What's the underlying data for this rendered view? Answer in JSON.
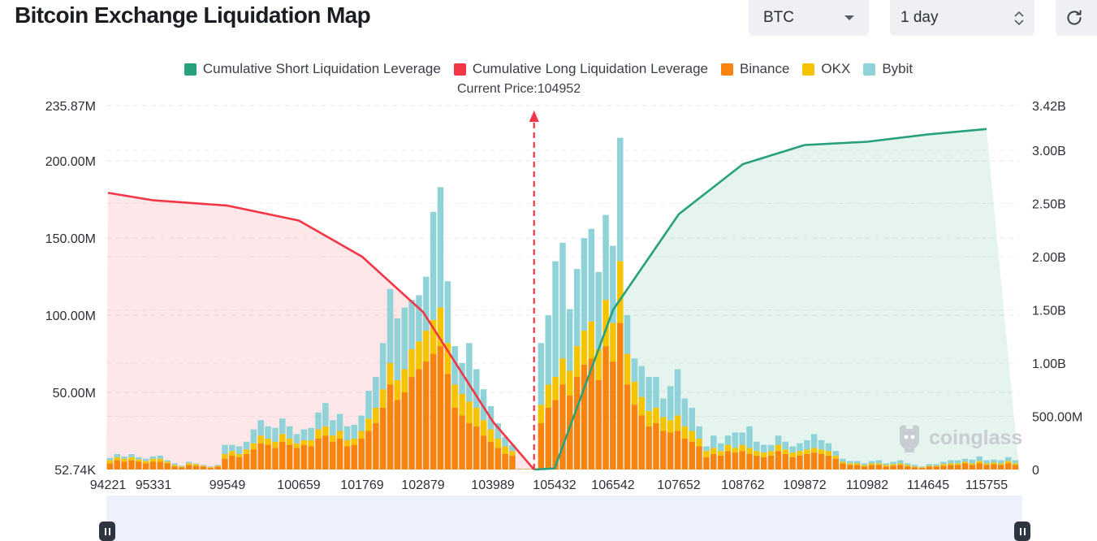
{
  "page": {
    "title": "Bitcoin Exchange Liquidation Map"
  },
  "controls": {
    "symbol": {
      "value": "BTC",
      "icon": "chevron-down-icon"
    },
    "period": {
      "value": "1 day",
      "icon": "updown-arrows-icon"
    },
    "refresh": {
      "icon": "refresh-icon"
    }
  },
  "watermark": {
    "text": "coinglass",
    "icon": "coinglass-logo-icon"
  },
  "colors": {
    "short": "#26a17b",
    "long": "#f23645",
    "binance": "#f7840f",
    "okx": "#f5c400",
    "bybit": "#8fd3d8"
  },
  "chart_data": {
    "type": "bar",
    "current_price_label": "Current Price:104952",
    "current_price": 104952,
    "legend": [
      {
        "label": "Cumulative Short Liquidation Leverage",
        "color": "#26a17b"
      },
      {
        "label": "Cumulative Long Liquidation Leverage",
        "color": "#f23645"
      },
      {
        "label": "Binance",
        "color": "#f7840f"
      },
      {
        "label": "OKX",
        "color": "#f5c400"
      },
      {
        "label": "Bybit",
        "color": "#8fd3d8"
      }
    ],
    "legend_position": "top-center",
    "x_tick_labels": [
      "94221",
      "95331",
      "99549",
      "100659",
      "101769",
      "102879",
      "103989",
      "105432",
      "106542",
      "107652",
      "108762",
      "109872",
      "110982",
      "114645",
      "115755"
    ],
    "left_axis": {
      "ticks": [
        "52.74K",
        "50.00M",
        "100.00M",
        "150.00M",
        "200.00M",
        "235.87M"
      ],
      "range": [
        0,
        235870000
      ]
    },
    "right_axis": {
      "ticks": [
        "0",
        "500.00M",
        "1.00B",
        "1.50B",
        "2.00B",
        "2.50B",
        "3.00B",
        "3.42B"
      ],
      "range": [
        0,
        3420000000
      ]
    },
    "bars_M": [
      [
        4,
        2,
        1.5
      ],
      [
        6,
        2,
        2
      ],
      [
        5,
        2,
        1.5
      ],
      [
        6,
        2,
        2
      ],
      [
        5,
        1.5,
        1.5
      ],
      [
        4,
        1.5,
        1.5
      ],
      [
        5,
        2,
        1.5
      ],
      [
        5,
        2,
        2
      ],
      [
        4,
        1,
        1
      ],
      [
        2,
        1,
        1
      ],
      [
        1.5,
        0.5,
        0.5
      ],
      [
        3,
        1,
        1
      ],
      [
        2.5,
        1,
        0.5
      ],
      [
        2,
        0.5,
        0.5
      ],
      [
        1,
        0.5,
        0.5
      ],
      [
        2,
        0.5,
        0.5
      ],
      [
        7,
        3,
        6
      ],
      [
        9,
        3,
        4
      ],
      [
        8,
        2,
        5
      ],
      [
        10,
        3,
        5
      ],
      [
        13,
        4,
        9
      ],
      [
        17,
        5,
        10
      ],
      [
        16,
        4,
        8
      ],
      [
        14,
        4,
        9
      ],
      [
        18,
        5,
        10
      ],
      [
        16,
        4,
        8
      ],
      [
        14,
        3,
        6
      ],
      [
        16,
        3,
        7
      ],
      [
        15,
        4,
        8
      ],
      [
        20,
        6,
        11
      ],
      [
        22,
        6,
        15
      ],
      [
        18,
        4,
        10
      ],
      [
        20,
        5,
        11
      ],
      [
        15,
        4,
        9
      ],
      [
        16,
        4,
        9
      ],
      [
        20,
        5,
        10
      ],
      [
        25,
        8,
        18
      ],
      [
        30,
        10,
        20
      ],
      [
        40,
        12,
        30
      ],
      [
        55,
        14,
        48
      ],
      [
        45,
        13,
        40
      ],
      [
        50,
        15,
        40
      ],
      [
        60,
        18,
        32
      ],
      [
        65,
        18,
        30
      ],
      [
        70,
        20,
        35
      ],
      [
        75,
        22,
        70
      ],
      [
        80,
        25,
        78
      ],
      [
        62,
        20,
        40
      ],
      [
        40,
        15,
        25
      ],
      [
        35,
        14,
        20
      ],
      [
        30,
        14,
        38
      ],
      [
        28,
        12,
        25
      ],
      [
        22,
        10,
        20
      ],
      [
        18,
        8,
        15
      ],
      [
        14,
        6,
        10
      ],
      [
        10,
        5,
        6
      ],
      [
        9,
        3,
        4
      ],
      [
        0.3,
        0.1,
        0.1
      ],
      [
        0.3,
        0.1,
        0.1
      ],
      [
        0.4,
        0.1,
        0.2
      ],
      [
        30,
        12,
        40
      ],
      [
        40,
        15,
        45
      ],
      [
        45,
        15,
        75
      ],
      [
        55,
        17,
        75
      ],
      [
        48,
        16,
        40
      ],
      [
        60,
        20,
        50
      ],
      [
        68,
        22,
        60
      ],
      [
        72,
        24,
        60
      ],
      [
        58,
        20,
        50
      ],
      [
        80,
        30,
        55
      ],
      [
        70,
        25,
        50
      ],
      [
        95,
        40,
        80
      ],
      [
        55,
        20,
        25
      ],
      [
        42,
        15,
        15
      ],
      [
        35,
        12,
        20
      ],
      [
        28,
        10,
        22
      ],
      [
        30,
        10,
        20
      ],
      [
        25,
        9,
        12
      ],
      [
        24,
        8,
        22
      ],
      [
        25,
        10,
        30
      ],
      [
        20,
        8,
        18
      ],
      [
        18,
        7,
        15
      ],
      [
        15,
        5,
        8
      ],
      [
        8,
        4,
        3
      ],
      [
        10,
        4,
        8
      ],
      [
        9,
        3,
        5
      ],
      [
        12,
        4,
        6
      ],
      [
        11,
        3,
        10
      ],
      [
        12,
        4,
        8
      ],
      [
        10,
        4,
        14
      ],
      [
        9,
        3,
        6
      ],
      [
        8,
        3,
        5
      ],
      [
        9,
        3,
        4
      ],
      [
        12,
        4,
        6
      ],
      [
        10,
        3,
        5
      ],
      [
        8,
        3,
        4
      ],
      [
        9,
        3,
        5
      ],
      [
        10,
        3,
        6
      ],
      [
        11,
        3,
        9
      ],
      [
        10,
        3,
        6
      ],
      [
        9,
        3,
        5
      ],
      [
        7,
        2,
        3
      ],
      [
        4,
        1,
        2
      ],
      [
        3,
        1,
        1.5
      ],
      [
        3,
        1,
        1.5
      ],
      [
        2,
        1,
        1
      ],
      [
        3,
        1,
        1.5
      ],
      [
        3,
        1,
        2
      ],
      [
        2,
        1,
        1
      ],
      [
        2.5,
        1,
        1.5
      ],
      [
        3,
        1,
        2
      ],
      [
        2,
        1,
        1
      ],
      [
        1.5,
        0.5,
        1
      ],
      [
        1,
        0.5,
        0.5
      ],
      [
        2,
        0.5,
        1
      ],
      [
        2,
        0.5,
        1
      ],
      [
        2.5,
        1,
        1.5
      ],
      [
        3,
        1,
        2
      ],
      [
        3,
        1,
        2
      ],
      [
        4,
        1,
        2
      ],
      [
        3,
        1,
        2.5
      ],
      [
        4,
        1.5,
        3
      ],
      [
        3,
        1,
        2
      ],
      [
        3.5,
        1,
        2
      ],
      [
        3,
        1,
        2
      ],
      [
        4,
        1.5,
        2.5
      ],
      [
        3,
        1,
        2
      ]
    ],
    "long_cumulative_B": [
      [
        94221,
        2.6
      ],
      [
        95331,
        2.53
      ],
      [
        99549,
        2.48
      ],
      [
        100659,
        2.34
      ],
      [
        101769,
        2.0
      ],
      [
        102879,
        1.48
      ],
      [
        103989,
        0.45
      ],
      [
        104952,
        0
      ]
    ],
    "short_cumulative_B": [
      [
        104952,
        0
      ],
      [
        105432,
        0.01
      ],
      [
        106542,
        1.5
      ],
      [
        107652,
        2.4
      ],
      [
        108762,
        2.87
      ],
      [
        109872,
        3.05
      ],
      [
        110982,
        3.08
      ],
      [
        114645,
        3.15
      ],
      [
        115755,
        3.2
      ]
    ]
  }
}
